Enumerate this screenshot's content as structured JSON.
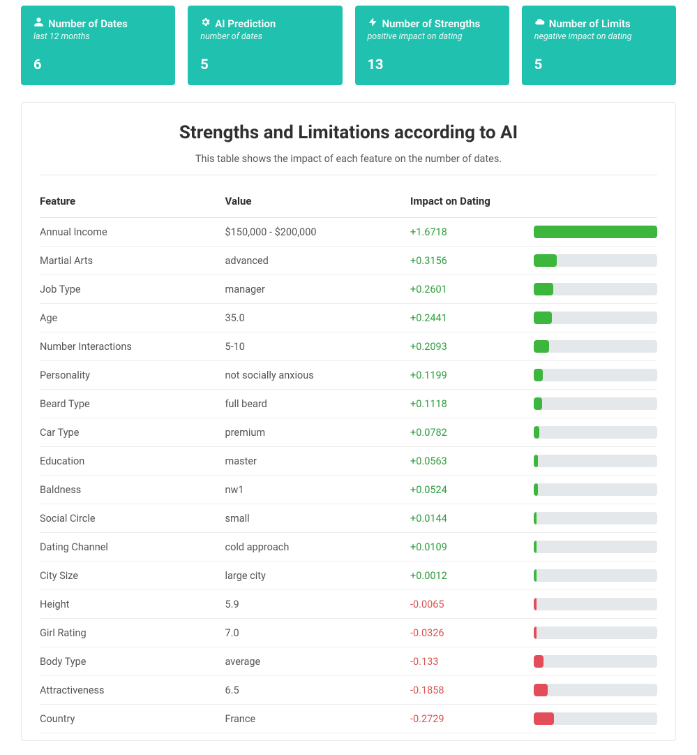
{
  "cards": [
    {
      "icon": "user",
      "title": "Number of Dates",
      "subtitle": "last 12 months",
      "value": "6"
    },
    {
      "icon": "gear",
      "title": "AI Prediction",
      "subtitle": "number of dates",
      "value": "5"
    },
    {
      "icon": "bolt",
      "title": "Number of Strengths",
      "subtitle": "positive impact on dating",
      "value": "13"
    },
    {
      "icon": "cloud",
      "title": "Number of Limits",
      "subtitle": "negative impact on dating",
      "value": "5"
    }
  ],
  "panel": {
    "title": "Strengths and Limitations according to AI",
    "desc": "This table shows the impact of each feature on the number of dates.",
    "columns": {
      "feature": "Feature",
      "value": "Value",
      "impact": "Impact on Dating"
    }
  },
  "colors": {
    "card_bg": "#20c1af",
    "pos_text": "#2e9e3e",
    "neg_text": "#d9534f",
    "pos_bar": "#3cb63c",
    "neg_bar": "#e34d59",
    "bar_track": "#e5e8eb"
  },
  "max_abs_impact": 1.6718,
  "rows": [
    {
      "feature": "Annual Income",
      "value": "$150,000 - $200,000",
      "impact": "+1.6718",
      "num": 1.6718
    },
    {
      "feature": "Martial Arts",
      "value": "advanced",
      "impact": "+0.3156",
      "num": 0.3156
    },
    {
      "feature": "Job Type",
      "value": "manager",
      "impact": "+0.2601",
      "num": 0.2601
    },
    {
      "feature": "Age",
      "value": "35.0",
      "impact": "+0.2441",
      "num": 0.2441
    },
    {
      "feature": "Number Interactions",
      "value": "5-10",
      "impact": "+0.2093",
      "num": 0.2093
    },
    {
      "feature": "Personality",
      "value": "not socially anxious",
      "impact": "+0.1199",
      "num": 0.1199
    },
    {
      "feature": "Beard Type",
      "value": "full beard",
      "impact": "+0.1118",
      "num": 0.1118
    },
    {
      "feature": "Car Type",
      "value": "premium",
      "impact": "+0.0782",
      "num": 0.0782
    },
    {
      "feature": "Education",
      "value": "master",
      "impact": "+0.0563",
      "num": 0.0563
    },
    {
      "feature": "Baldness",
      "value": "nw1",
      "impact": "+0.0524",
      "num": 0.0524
    },
    {
      "feature": "Social Circle",
      "value": "small",
      "impact": "+0.0144",
      "num": 0.0144
    },
    {
      "feature": "Dating Channel",
      "value": "cold approach",
      "impact": "+0.0109",
      "num": 0.0109
    },
    {
      "feature": "City Size",
      "value": "large city",
      "impact": "+0.0012",
      "num": 0.0012
    },
    {
      "feature": "Height",
      "value": "5.9",
      "impact": "-0.0065",
      "num": -0.0065
    },
    {
      "feature": "Girl Rating",
      "value": "7.0",
      "impact": "-0.0326",
      "num": -0.0326
    },
    {
      "feature": "Body Type",
      "value": "average",
      "impact": "-0.133",
      "num": -0.133
    },
    {
      "feature": "Attractiveness",
      "value": "6.5",
      "impact": "-0.1858",
      "num": -0.1858
    },
    {
      "feature": "Country",
      "value": "France",
      "impact": "-0.2729",
      "num": -0.2729
    }
  ]
}
